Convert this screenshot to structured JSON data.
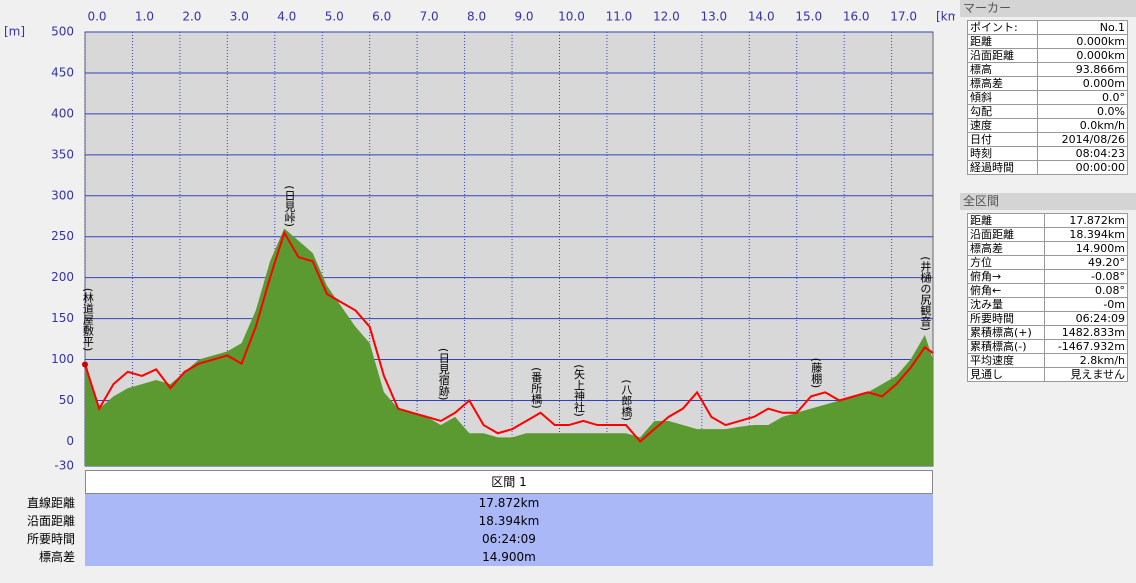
{
  "chart_data": {
    "type": "area-line",
    "x_label": "[km]",
    "y_label": "[m]",
    "x": [
      0,
      0.3,
      0.6,
      0.9,
      1.2,
      1.5,
      1.8,
      2.1,
      2.4,
      2.7,
      3.0,
      3.3,
      3.6,
      3.9,
      4.2,
      4.5,
      4.8,
      5.1,
      5.4,
      5.7,
      6.0,
      6.3,
      6.6,
      6.9,
      7.2,
      7.5,
      7.8,
      8.1,
      8.4,
      8.7,
      9.0,
      9.3,
      9.6,
      9.9,
      10.2,
      10.5,
      10.8,
      11.1,
      11.4,
      11.7,
      12.0,
      12.3,
      12.6,
      12.9,
      13.2,
      13.5,
      13.8,
      14.1,
      14.4,
      14.7,
      15.0,
      15.3,
      15.6,
      15.9,
      16.2,
      16.5,
      16.8,
      17.1,
      17.4,
      17.7,
      17.872
    ],
    "series": [
      {
        "color": "#5a9a30",
        "fill": true,
        "values": [
          100,
          40,
          55,
          65,
          70,
          75,
          70,
          85,
          100,
          105,
          110,
          120,
          160,
          220,
          260,
          245,
          230,
          190,
          165,
          140,
          120,
          60,
          40,
          35,
          30,
          20,
          30,
          10,
          10,
          5,
          5,
          10,
          10,
          10,
          10,
          10,
          10,
          10,
          10,
          5,
          25,
          25,
          20,
          15,
          15,
          15,
          18,
          20,
          20,
          30,
          35,
          40,
          45,
          50,
          55,
          60,
          70,
          80,
          100,
          130,
          100
        ]
      },
      {
        "color": "#ff0000",
        "fill": false,
        "values": [
          94,
          40,
          70,
          85,
          80,
          88,
          65,
          85,
          95,
          100,
          105,
          95,
          140,
          200,
          255,
          225,
          220,
          180,
          170,
          160,
          140,
          80,
          40,
          35,
          30,
          25,
          35,
          50,
          20,
          10,
          15,
          25,
          35,
          20,
          20,
          25,
          20,
          20,
          20,
          0,
          15,
          30,
          40,
          60,
          30,
          20,
          25,
          30,
          40,
          35,
          35,
          55,
          60,
          50,
          55,
          60,
          55,
          70,
          90,
          115,
          108
        ]
      }
    ],
    "xlim": [
      0,
      17.872
    ],
    "ylim": [
      -30,
      500
    ],
    "xticks": [
      {
        "value": 0,
        "label": "0.0"
      },
      {
        "value": 1,
        "label": "1.0"
      },
      {
        "value": 2,
        "label": "2.0"
      },
      {
        "value": 3,
        "label": "3.0"
      },
      {
        "value": 4,
        "label": "4.0"
      },
      {
        "value": 5,
        "label": "5.0"
      },
      {
        "value": 6,
        "label": "6.0"
      },
      {
        "value": 7,
        "label": "7.0"
      },
      {
        "value": 8,
        "label": "8.0"
      },
      {
        "value": 9,
        "label": "9.0"
      },
      {
        "value": 10,
        "label": "10.0"
      },
      {
        "value": 11,
        "label": "11.0"
      },
      {
        "value": 12,
        "label": "12.0"
      },
      {
        "value": 13,
        "label": "13.0"
      },
      {
        "value": 14,
        "label": "14.0"
      },
      {
        "value": 15,
        "label": "15.0"
      },
      {
        "value": 16,
        "label": "16.0"
      },
      {
        "value": 17,
        "label": "17.0"
      }
    ],
    "yticks": [
      -30,
      0,
      50,
      100,
      150,
      200,
      250,
      300,
      350,
      400,
      450,
      500
    ],
    "grid": true,
    "annotations": [
      {
        "text": "(林道屋敷平)",
        "x": 0.05,
        "y": 110
      },
      {
        "text": "(日見峠)",
        "x": 4.3,
        "y": 262
      },
      {
        "text": "(日見宿跡)",
        "x": 7.55,
        "y": 50
      },
      {
        "text": "(番所橋)",
        "x": 9.5,
        "y": 40
      },
      {
        "text": "(矢上神社)",
        "x": 10.4,
        "y": 30
      },
      {
        "text": "(八郎橋)",
        "x": 11.4,
        "y": 25
      },
      {
        "text": "(藤棚)",
        "x": 15.4,
        "y": 65
      },
      {
        "text": "(井樋の尻観音)",
        "x": 17.7,
        "y": 135
      }
    ]
  },
  "marker": {
    "title": "マーカー",
    "rows": [
      [
        "ポイント:",
        "No.1"
      ],
      [
        "距離",
        "0.000km"
      ],
      [
        "沿面距離",
        "0.000km"
      ],
      [
        "標高",
        "93.866m"
      ],
      [
        "標高差",
        "0.000m"
      ],
      [
        "傾斜",
        "0.0°"
      ],
      [
        "勾配",
        "0.0%"
      ],
      [
        "速度",
        "0.0km/h"
      ],
      [
        "日付",
        "2014/08/26"
      ],
      [
        "時刻",
        "08:04:23"
      ],
      [
        "経過時間",
        "00:00:00"
      ]
    ]
  },
  "total": {
    "title": "全区間",
    "rows": [
      [
        "距離",
        "17.872km"
      ],
      [
        "沿面距離",
        "18.394km"
      ],
      [
        "標高差",
        "14.900m"
      ],
      [
        "方位",
        "49.20°"
      ],
      [
        "俯角→",
        "-0.08°"
      ],
      [
        "俯角←",
        "0.08°"
      ],
      [
        "沈み量",
        "-0m"
      ],
      [
        "所要時間",
        "06:24:09"
      ],
      [
        "累積標高(+)",
        "1482.833m"
      ],
      [
        "累積標高(-)",
        "-1467.932m"
      ],
      [
        "平均速度",
        "2.8km/h"
      ],
      [
        "見通し",
        "見えません"
      ]
    ]
  },
  "section": {
    "title": "区間 1",
    "rows": [
      [
        "直線距離",
        "17.872km"
      ],
      [
        "沿面距離",
        "18.394km"
      ],
      [
        "所要時間",
        "06:24:09"
      ],
      [
        "標高差",
        "14.900m"
      ]
    ]
  }
}
